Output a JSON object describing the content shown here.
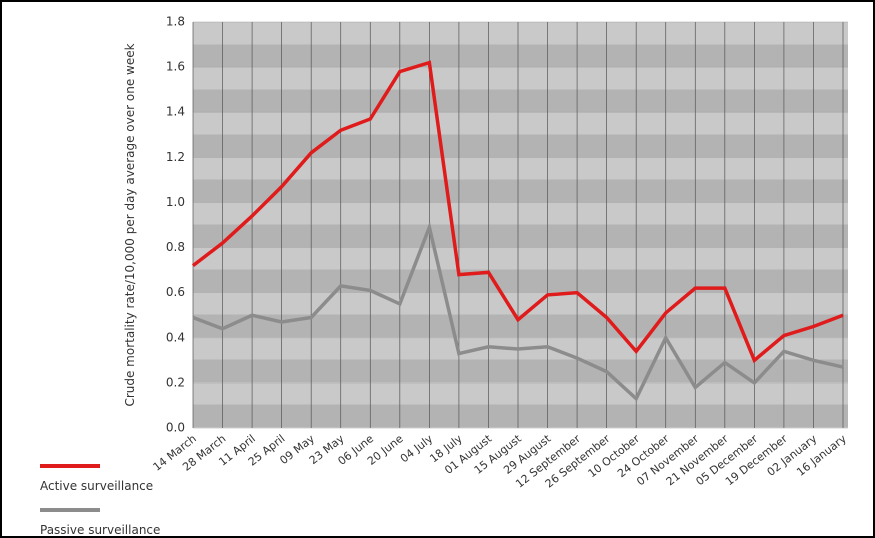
{
  "chart_data": {
    "type": "line",
    "y_label": "Crude mortality rate/10,000 per day average over one week",
    "categories": [
      "14 March",
      "28 March",
      "11 April",
      "25 April",
      "09 May",
      "23 May",
      "06 June",
      "20 June",
      "04 July",
      "18 July",
      "01 August",
      "15 August",
      "29 August",
      "12 September",
      "26 September",
      "10 October",
      "24 October",
      "07 November",
      "21 November",
      "05 December",
      "19 December",
      "02 January",
      "16 January"
    ],
    "series": [
      {
        "name": "Active surveillance",
        "color": "#e01b1b",
        "values": [
          0.72,
          0.82,
          0.94,
          1.07,
          1.22,
          1.32,
          1.37,
          1.58,
          1.62,
          0.68,
          0.69,
          0.48,
          0.59,
          0.6,
          0.49,
          0.34,
          0.51,
          0.62,
          0.62,
          0.3,
          0.41,
          0.45,
          0.5
        ]
      },
      {
        "name": "Passive surveillance",
        "color": "#8c8c8c",
        "values": [
          0.49,
          0.44,
          0.5,
          0.47,
          0.49,
          0.63,
          0.61,
          0.55,
          0.89,
          0.33,
          0.36,
          0.35,
          0.36,
          0.31,
          0.25,
          0.13,
          0.4,
          0.18,
          0.29,
          0.2,
          0.34,
          0.3,
          0.27
        ]
      }
    ],
    "ylim": [
      0,
      1.8
    ],
    "yticks": [
      {
        "value": 0,
        "label": "0.0"
      },
      0.2,
      0.4,
      0.6,
      0.8,
      {
        "value": 1,
        "label": "1.0"
      },
      1.2,
      1.4,
      1.6,
      1.8
    ],
    "grid": true
  }
}
